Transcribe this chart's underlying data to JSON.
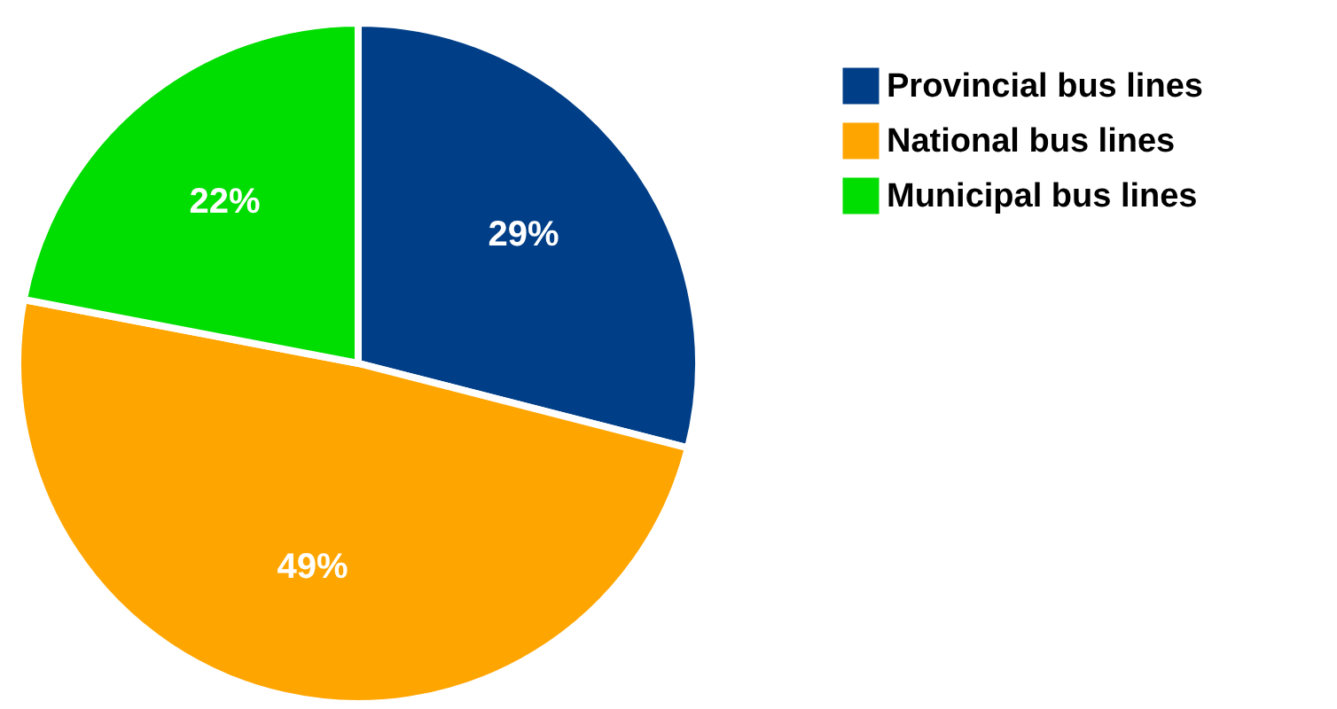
{
  "chart_data": {
    "type": "pie",
    "categories": [
      "Provincial bus lines",
      "National bus lines",
      "Municipal bus lines"
    ],
    "values": [
      29,
      49,
      22
    ],
    "colors": [
      "#003f87",
      "#ffa500",
      "#00dd00"
    ],
    "value_labels": [
      "29%",
      "49%",
      "22%"
    ],
    "legend": "top right"
  }
}
